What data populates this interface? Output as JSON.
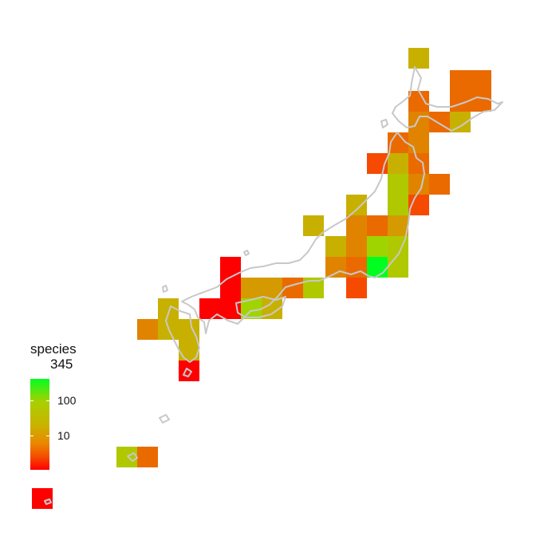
{
  "legend": {
    "title": "species",
    "max_label": "345",
    "ticks": [
      "100",
      "10"
    ],
    "colors": {
      "high": "#00ff20",
      "mid": "#c8b400",
      "low": "#ff0000"
    }
  },
  "map": {
    "region": "Japan",
    "outline_color": "#c8c8c8",
    "cell_colors": {
      "red": "#ff0000",
      "red_orange": "#f54a00",
      "orange": "#ea6a00",
      "dark_orange": "#e08400",
      "amber": "#d49a00",
      "olive_yellow": "#c8b000",
      "yellow_green": "#b0c800",
      "lime": "#a0d400",
      "bright_green": "#00ff20"
    }
  }
}
